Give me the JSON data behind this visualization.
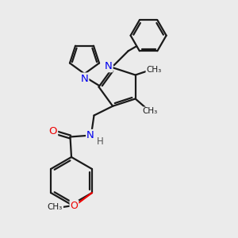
{
  "bg_color": "#ebebeb",
  "bond_color": "#1a1a1a",
  "N_color": "#0000ee",
  "O_color": "#ee0000",
  "H_color": "#555555",
  "line_width": 1.6,
  "figsize": [
    3.0,
    3.0
  ],
  "dpi": 100,
  "xlim": [
    0,
    10
  ],
  "ylim": [
    0,
    10
  ]
}
